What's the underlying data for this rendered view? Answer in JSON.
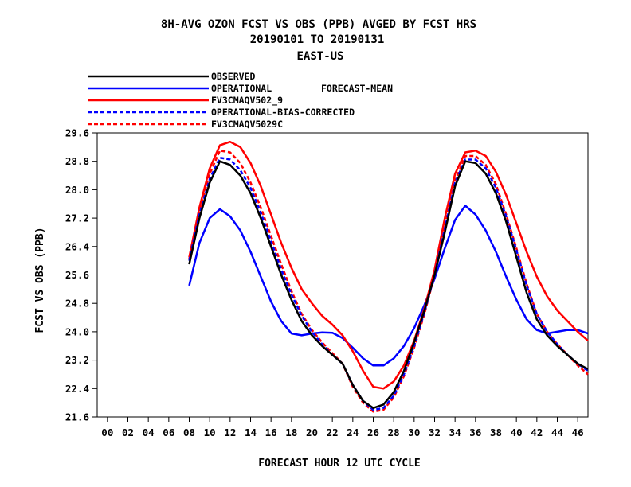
{
  "chart_data": {
    "type": "line",
    "title_lines": [
      "8H-AVG OZON FCST VS OBS (PPB)  AVGED BY FCST HRS",
      "20190101 TO 20190131",
      "EAST-US"
    ],
    "legend_note": "FORECAST-MEAN",
    "xlabel": "FORECAST HOUR  12 UTC CYCLE",
    "ylabel": "FCST VS OBS (PPB)",
    "xlim": [
      -1,
      47
    ],
    "ylim": [
      21.6,
      29.6
    ],
    "x_ticks": [
      "00",
      "02",
      "04",
      "06",
      "08",
      "10",
      "12",
      "14",
      "16",
      "18",
      "20",
      "22",
      "24",
      "26",
      "28",
      "30",
      "32",
      "34",
      "36",
      "38",
      "40",
      "42",
      "44",
      "46"
    ],
    "y_ticks": [
      "29.6",
      "28.8",
      "28.0",
      "27.2",
      "26.4",
      "25.6",
      "24.8",
      "24.0",
      "23.2",
      "22.4",
      "21.6"
    ],
    "grid": false,
    "legend_position": "top-left",
    "x": [
      8,
      9,
      10,
      11,
      12,
      13,
      14,
      15,
      16,
      17,
      18,
      19,
      20,
      21,
      22,
      23,
      24,
      25,
      26,
      27,
      28,
      29,
      30,
      31,
      32,
      33,
      34,
      35,
      36,
      37,
      38,
      39,
      40,
      41,
      42,
      43,
      44,
      45,
      46,
      47
    ],
    "series": [
      {
        "name": "OBSERVED",
        "color": "#000000",
        "dash": "solid",
        "values": [
          25.9,
          27.2,
          28.2,
          28.8,
          28.7,
          28.4,
          27.9,
          27.2,
          26.4,
          25.6,
          24.9,
          24.3,
          23.9,
          23.6,
          23.35,
          23.1,
          22.5,
          22.05,
          21.85,
          21.95,
          22.3,
          22.9,
          23.7,
          24.6,
          25.6,
          26.8,
          28.1,
          28.8,
          28.75,
          28.45,
          27.9,
          27.1,
          26.1,
          25.1,
          24.35,
          23.9,
          23.6,
          23.35,
          23.1,
          22.95
        ]
      },
      {
        "name": "OPERATIONAL",
        "color": "#0000ff",
        "dash": "solid",
        "values": [
          25.3,
          26.5,
          27.2,
          27.45,
          27.25,
          26.85,
          26.25,
          25.55,
          24.85,
          24.3,
          23.95,
          23.9,
          23.95,
          23.98,
          23.97,
          23.82,
          23.55,
          23.25,
          23.05,
          23.05,
          23.25,
          23.6,
          24.1,
          24.75,
          25.5,
          26.35,
          27.15,
          27.55,
          27.3,
          26.85,
          26.25,
          25.55,
          24.9,
          24.35,
          24.05,
          23.95,
          24.0,
          24.05,
          24.05,
          23.95
        ]
      },
      {
        "name": "FV3CMAQV502_9",
        "color": "#ff0000",
        "dash": "solid",
        "values": [
          26.1,
          27.5,
          28.6,
          29.25,
          29.35,
          29.2,
          28.75,
          28.1,
          27.3,
          26.5,
          25.8,
          25.2,
          24.8,
          24.45,
          24.2,
          23.9,
          23.45,
          22.9,
          22.45,
          22.4,
          22.6,
          23.05,
          23.75,
          24.65,
          25.75,
          27.2,
          28.45,
          29.05,
          29.1,
          28.95,
          28.5,
          27.85,
          27.05,
          26.25,
          25.55,
          25.0,
          24.6,
          24.3,
          24.0,
          23.75
        ]
      },
      {
        "name": "OPERATIONAL-BIAS-CORRECTED",
        "color": "#0000ff",
        "dash": "dashed",
        "values": [
          26.0,
          27.3,
          28.3,
          28.9,
          28.85,
          28.55,
          28.05,
          27.35,
          26.55,
          25.75,
          25.05,
          24.45,
          24.0,
          23.65,
          23.35,
          23.1,
          22.5,
          22.05,
          21.8,
          21.85,
          22.2,
          22.8,
          23.6,
          24.55,
          25.6,
          26.9,
          28.2,
          28.85,
          28.85,
          28.6,
          28.05,
          27.25,
          26.3,
          25.3,
          24.5,
          24.0,
          23.65,
          23.35,
          23.1,
          22.9
        ]
      },
      {
        "name": "FV3CMAQV5029C",
        "color": "#ff0000",
        "dash": "dashed",
        "values": [
          26.05,
          27.4,
          28.45,
          29.1,
          29.05,
          28.75,
          28.2,
          27.5,
          26.7,
          25.9,
          25.15,
          24.5,
          24.05,
          23.7,
          23.4,
          23.1,
          22.45,
          22.0,
          21.75,
          21.8,
          22.15,
          22.75,
          23.55,
          24.5,
          25.6,
          26.95,
          28.25,
          28.95,
          28.95,
          28.7,
          28.15,
          27.3,
          26.35,
          25.35,
          24.5,
          24.0,
          23.65,
          23.35,
          23.05,
          22.8
        ]
      }
    ]
  }
}
